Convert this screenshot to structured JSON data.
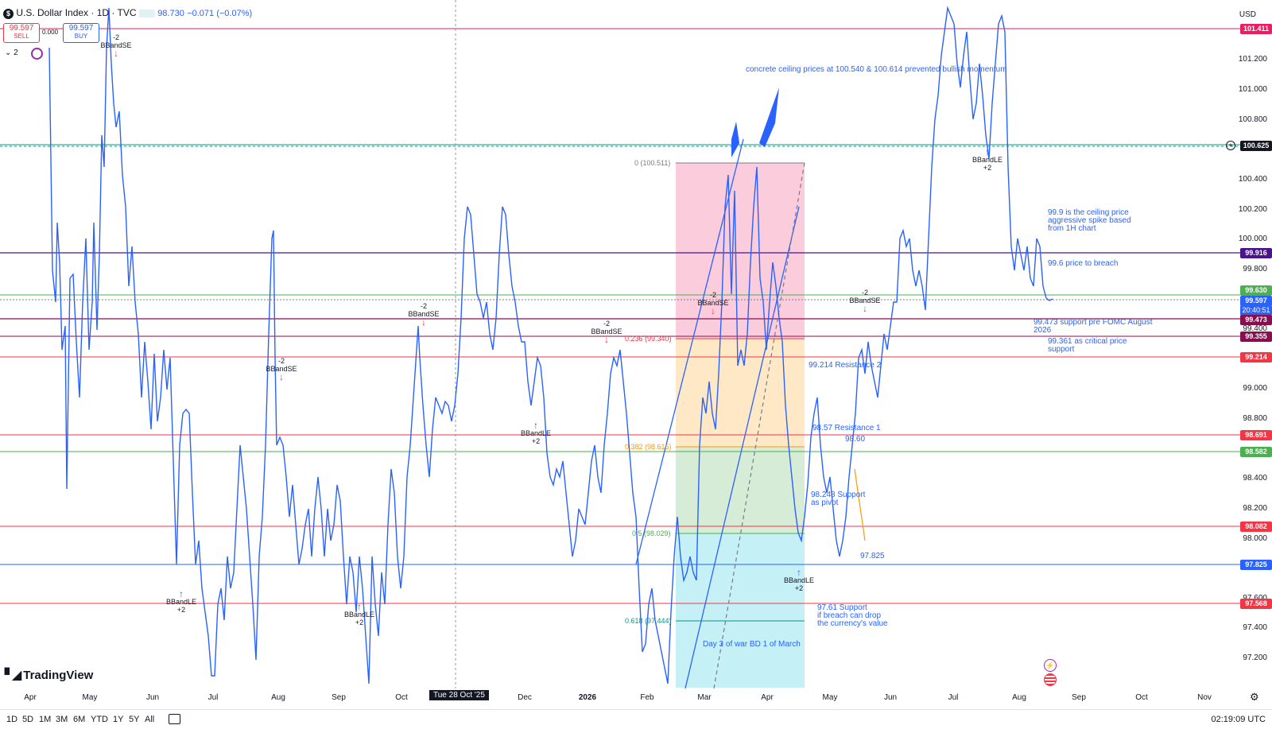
{
  "header": {
    "symbol_badge": "$",
    "title": "U.S. Dollar Index · 1D · TVC",
    "price": "98.730",
    "change": "−0.071 (−0.07%)",
    "sell_price": "99.597",
    "sell_label": "SELL",
    "spread": "0.000",
    "buy_price": "99.597",
    "buy_label": "BUY",
    "indicator_count": "2",
    "currency": "USD"
  },
  "price_axis": {
    "ticks": [
      "101.200",
      "101.000",
      "100.800",
      "100.400",
      "100.200",
      "100.000",
      "99.800",
      "99.400",
      "99.000",
      "98.800",
      "98.400",
      "98.200",
      "98.000",
      "97.600",
      "97.400",
      "97.200"
    ],
    "tags": [
      {
        "label": "101.411",
        "color": "#e91e63"
      },
      {
        "label": "100.625",
        "color": "#131722"
      },
      {
        "label": "99.916",
        "color": "#4a148c"
      },
      {
        "label": "99.630",
        "color": "#4caf50"
      },
      {
        "label": "99.597",
        "color": "#2962ff"
      },
      {
        "label": "20:40:51",
        "color": "#2962ff"
      },
      {
        "label": "99.473",
        "color": "#880e4f"
      },
      {
        "label": "99.355",
        "color": "#880e4f"
      },
      {
        "label": "99.214",
        "color": "#f23645"
      },
      {
        "label": "98.691",
        "color": "#f23645"
      },
      {
        "label": "98.582",
        "color": "#4caf50"
      },
      {
        "label": "98.082",
        "color": "#f23645"
      },
      {
        "label": "97.825",
        "color": "#2962ff"
      },
      {
        "label": "97.568",
        "color": "#f23645"
      }
    ]
  },
  "time_axis": {
    "labels": [
      "Apr",
      "May",
      "Jun",
      "Jul",
      "Aug",
      "Sep",
      "Oct",
      "Dec",
      "2026",
      "Feb",
      "Mar",
      "Apr",
      "May",
      "Jun",
      "Jul",
      "Aug",
      "Sep",
      "Oct",
      "Nov"
    ],
    "crosshair_label": "Tue 28 Oct '25"
  },
  "fib_levels": [
    {
      "label": "0 (100.511)",
      "color": "#787b86"
    },
    {
      "label": "0.236 (99.340)",
      "color": "#f23645"
    },
    {
      "label": "0.382 (98.615)",
      "color": "#ff9800"
    },
    {
      "label": "0.5 (98.029)",
      "color": "#4caf50"
    },
    {
      "label": "0.618 (97.444)",
      "color": "#089981"
    }
  ],
  "annotations": {
    "ceiling": "concrete ceiling prices at 100.540 & 100.614 prevented bullish momentum",
    "ceiling_price_1": "99.9 is the ceiling price",
    "ceiling_price_2": "aggressive spike based",
    "ceiling_price_3": "from 1H chart",
    "breach": "99.6 price to breach",
    "support_fomc_1": "99.473 support pre FOMC August",
    "support_fomc_2": "2026",
    "critical_1": "99.361 as critical price",
    "critical_2": "support",
    "resistance_2": "99.214 Resistance 2",
    "resistance_1": "98.57 Resistance 1",
    "val_9860": "98.60",
    "support_pivot_1": "98.248 Support",
    "support_pivot_2": "as pivot",
    "val_97825": "97.825",
    "support_9761_1": "97.61 Support",
    "support_9761_2": "if breach can drop",
    "support_9761_3": "the currency's value",
    "war": "Day 3 of war BD 1 of March"
  },
  "signals": {
    "se_top": "-2",
    "se_label": "BBandSE",
    "le_label": "BBandLE",
    "le_bottom": "+2"
  },
  "logo": "TradingView",
  "bottom_toolbar": {
    "timeframes": [
      "1D",
      "5D",
      "1M",
      "3M",
      "6M",
      "YTD",
      "1Y",
      "5Y",
      "All"
    ],
    "clock": "02:19:09 UTC"
  },
  "colors": {
    "price_line": "#2962ff",
    "fib_red_zone": "#f8bbd0",
    "fib_orange_zone": "#ffe0b2",
    "fib_green_zone": "#c8e6c9",
    "fib_teal_zone": "#b2ebf2"
  }
}
